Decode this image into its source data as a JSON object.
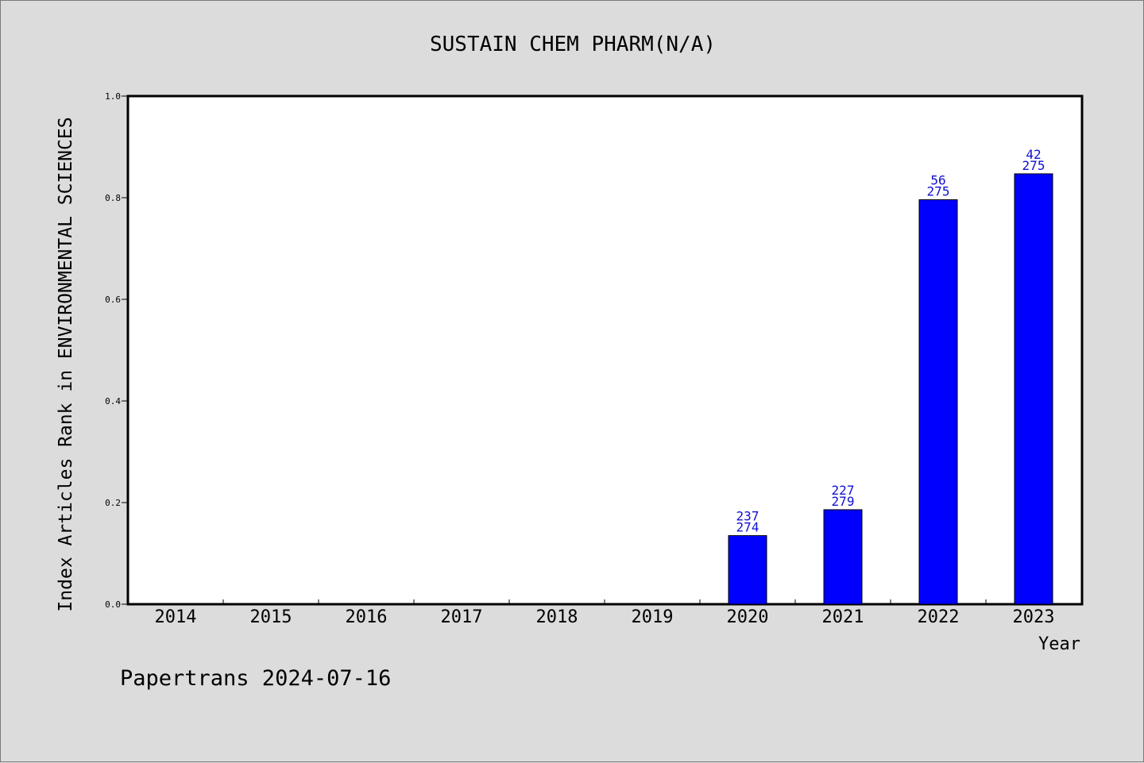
{
  "chart_data": {
    "type": "bar",
    "title": "SUSTAIN CHEM PHARM(N/A)",
    "xlabel": "Year",
    "ylabel": "Index Articles Rank in ENVIRONMENTAL SCIENCES",
    "ylim": [
      0,
      1.0
    ],
    "yticks": [
      "0.0",
      "0.2",
      "0.4",
      "0.6",
      "0.8",
      "1.0"
    ],
    "categories": [
      "2014",
      "2015",
      "2016",
      "2017",
      "2018",
      "2019",
      "2020",
      "2021",
      "2022",
      "2023"
    ],
    "values": [
      null,
      null,
      null,
      null,
      null,
      null,
      0.135,
      0.186,
      0.796,
      0.847
    ],
    "rank": [
      null,
      null,
      null,
      null,
      null,
      null,
      "237",
      "227",
      "56",
      "42"
    ],
    "total": [
      null,
      null,
      null,
      null,
      null,
      null,
      "274",
      "279",
      "275",
      "275"
    ],
    "bar_color": "#0000ff",
    "label_color": "#1010d0",
    "grid": false
  },
  "footer": "Papertrans 2024-07-16"
}
